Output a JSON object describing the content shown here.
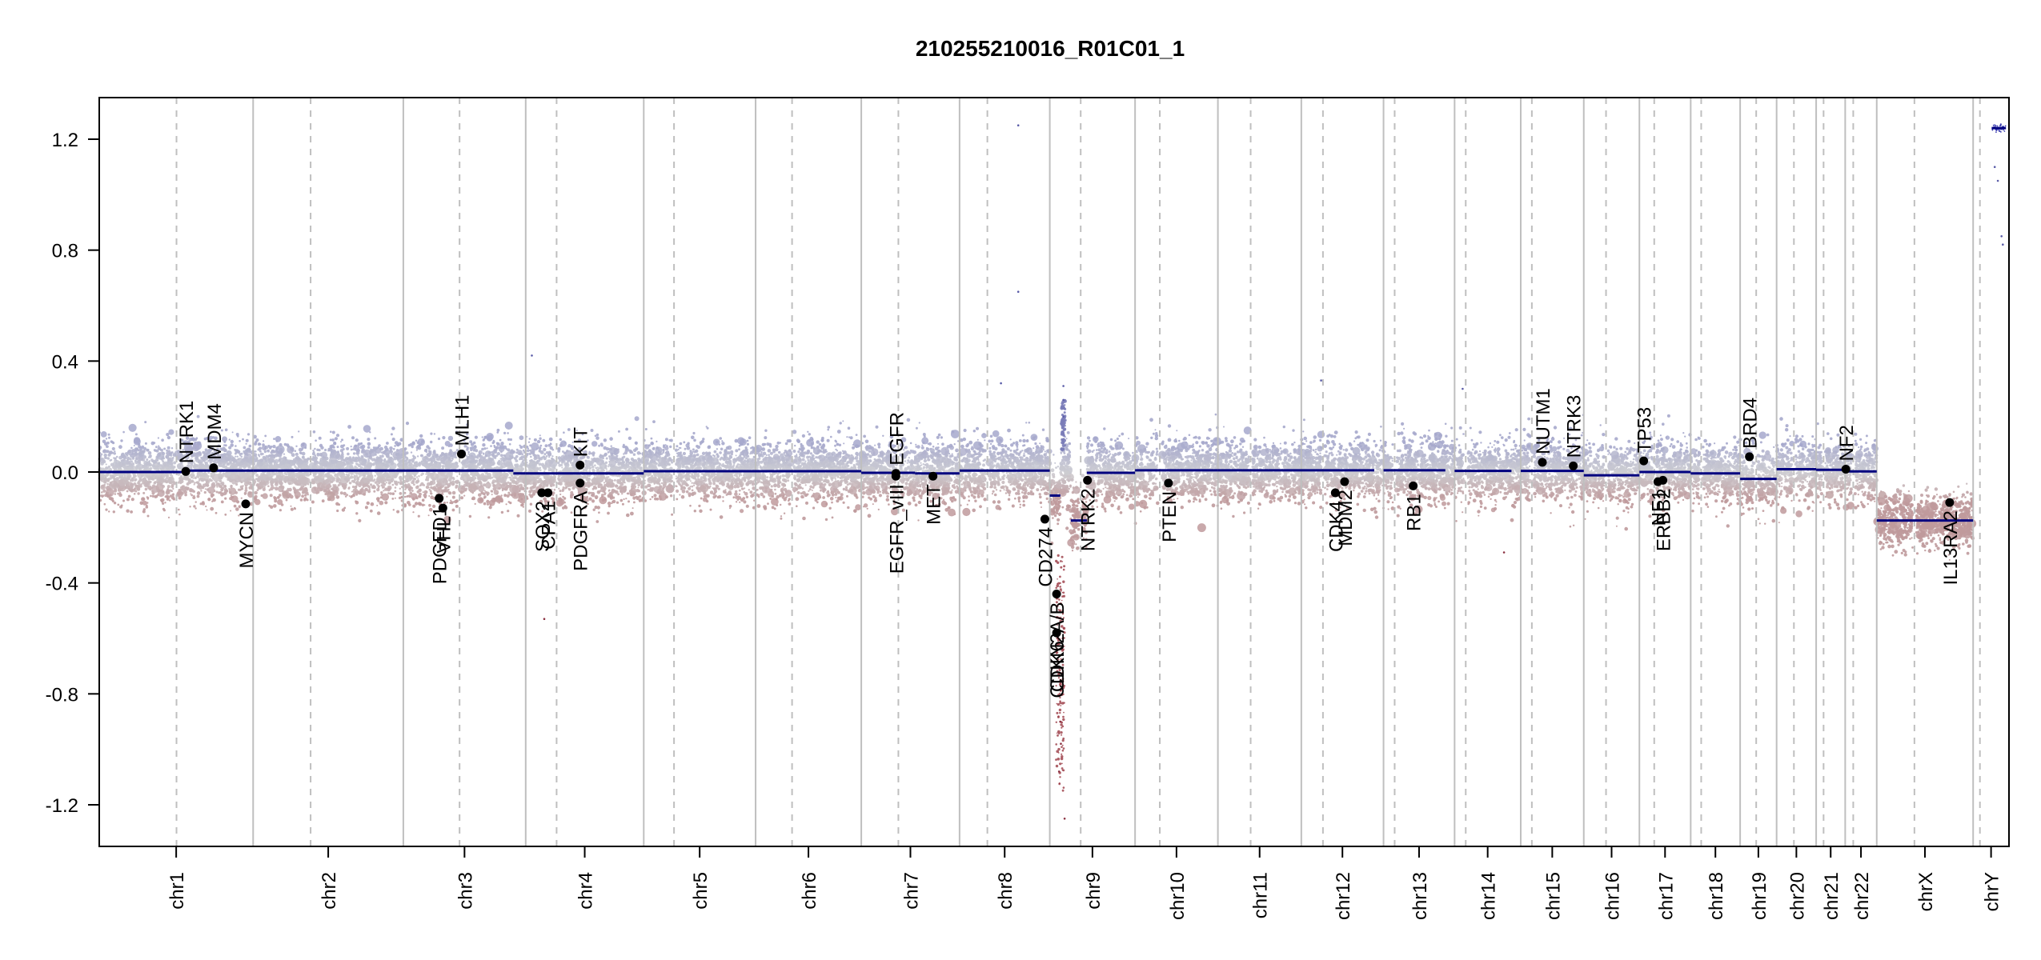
{
  "chart_data": {
    "type": "scatter",
    "title": "210255210016_R01C01_1",
    "xlabel": "",
    "ylabel": "",
    "ylim": [
      -1.35,
      1.35
    ],
    "yticks": [
      -1.2,
      -0.8,
      -0.4,
      0.0,
      0.4,
      0.8,
      1.2
    ],
    "ytick_labels": [
      "-1.2",
      "-0.8",
      "-0.4",
      "0.0",
      "0.4",
      "0.8",
      "1.2"
    ],
    "grid": false,
    "colors": {
      "positive_probes": "#a6a8cc",
      "negative_probes": "#bf9a9c",
      "segments": "#00007f",
      "genes": "#000000",
      "chrom_border": "#bfbfbf",
      "centromere": "#bfbfbf",
      "axis": "#000000"
    },
    "chromosomes": [
      {
        "name": "chr1",
        "start": 0,
        "end": 249,
        "centromere": 125
      },
      {
        "name": "chr2",
        "start": 249,
        "end": 492,
        "centromere": 342
      },
      {
        "name": "chr3",
        "start": 492,
        "end": 690,
        "centromere": 583
      },
      {
        "name": "chr4",
        "start": 690,
        "end": 881,
        "centromere": 740
      },
      {
        "name": "chr5",
        "start": 881,
        "end": 1062,
        "centromere": 930
      },
      {
        "name": "chr6",
        "start": 1062,
        "end": 1233,
        "centromere": 1121
      },
      {
        "name": "chr7",
        "start": 1233,
        "end": 1392,
        "centromere": 1293
      },
      {
        "name": "chr8",
        "start": 1392,
        "end": 1538,
        "centromere": 1437
      },
      {
        "name": "chr9",
        "start": 1538,
        "end": 1676,
        "centromere": 1588
      },
      {
        "name": "chr10",
        "start": 1676,
        "end": 1810,
        "centromere": 1716
      },
      {
        "name": "chr11",
        "start": 1810,
        "end": 1945,
        "centromere": 1863
      },
      {
        "name": "chr12",
        "start": 1945,
        "end": 2078,
        "centromere": 1980
      },
      {
        "name": "chr13",
        "start": 2078,
        "end": 2193,
        "centromere": 2096
      },
      {
        "name": "chr14",
        "start": 2193,
        "end": 2300,
        "centromere": 2211
      },
      {
        "name": "chr15",
        "start": 2300,
        "end": 2402,
        "centromere": 2318
      },
      {
        "name": "chr16",
        "start": 2402,
        "end": 2492,
        "centromere": 2438
      },
      {
        "name": "chr17",
        "start": 2492,
        "end": 2575,
        "centromere": 2516
      },
      {
        "name": "chr18",
        "start": 2575,
        "end": 2655,
        "centromere": 2592
      },
      {
        "name": "chr19",
        "start": 2655,
        "end": 2714,
        "centromere": 2681
      },
      {
        "name": "chr20",
        "start": 2714,
        "end": 2778,
        "centromere": 2742
      },
      {
        "name": "chr21",
        "start": 2778,
        "end": 2825,
        "centromere": 2790
      },
      {
        "name": "chr22",
        "start": 2825,
        "end": 2876,
        "centromere": 2838
      },
      {
        "name": "chrX",
        "start": 2876,
        "end": 3032,
        "centromere": 2937
      },
      {
        "name": "chrY",
        "start": 3032,
        "end": 3090,
        "centromere": 3043
      }
    ],
    "segments": [
      {
        "start": 0,
        "end": 145,
        "value": 0.0
      },
      {
        "start": 145,
        "end": 249,
        "value": 0.005
      },
      {
        "start": 249,
        "end": 670,
        "value": 0.005
      },
      {
        "start": 670,
        "end": 690,
        "value": -0.005
      },
      {
        "start": 690,
        "end": 881,
        "value": -0.005
      },
      {
        "start": 881,
        "end": 1233,
        "value": 0.003
      },
      {
        "start": 1233,
        "end": 1320,
        "value": -0.003
      },
      {
        "start": 1320,
        "end": 1392,
        "value": -0.005
      },
      {
        "start": 1392,
        "end": 1538,
        "value": 0.005
      },
      {
        "start": 1538,
        "end": 1555,
        "value": -0.085
      },
      {
        "start": 1572,
        "end": 1598,
        "value": -0.175
      },
      {
        "start": 1598,
        "end": 1676,
        "value": -0.003
      },
      {
        "start": 1676,
        "end": 1810,
        "value": 0.006
      },
      {
        "start": 1810,
        "end": 2063,
        "value": 0.006
      },
      {
        "start": 2078,
        "end": 2178,
        "value": 0.006
      },
      {
        "start": 2193,
        "end": 2285,
        "value": 0.004
      },
      {
        "start": 2300,
        "end": 2402,
        "value": 0.004
      },
      {
        "start": 2402,
        "end": 2492,
        "value": -0.012
      },
      {
        "start": 2492,
        "end": 2575,
        "value": 0.0
      },
      {
        "start": 2575,
        "end": 2655,
        "value": -0.005
      },
      {
        "start": 2655,
        "end": 2714,
        "value": -0.025
      },
      {
        "start": 2714,
        "end": 2778,
        "value": 0.01
      },
      {
        "start": 2778,
        "end": 2825,
        "value": 0.008
      },
      {
        "start": 2825,
        "end": 2876,
        "value": 0.002
      },
      {
        "start": 2876,
        "end": 3032,
        "value": -0.175
      },
      {
        "start": 3062,
        "end": 3085,
        "value": 1.24
      }
    ],
    "genes": [
      {
        "name": "NTRK1",
        "pos": 140,
        "value": 0.002,
        "label_side": "up"
      },
      {
        "name": "MDM4",
        "pos": 185,
        "value": 0.015,
        "label_side": "up"
      },
      {
        "name": "MYCN",
        "pos": 237,
        "value": -0.115,
        "label_side": "down"
      },
      {
        "name": "PDGFD1",
        "pos": 550,
        "value": -0.095,
        "label_side": "down"
      },
      {
        "name": "VHL",
        "pos": 556,
        "value": -0.13,
        "label_side": "down"
      },
      {
        "name": "MLH1",
        "pos": 586,
        "value": 0.065,
        "label_side": "up"
      },
      {
        "name": "SOX2",
        "pos": 716,
        "value": -0.075,
        "label_side": "down"
      },
      {
        "name": "CPA1",
        "pos": 726,
        "value": -0.075,
        "label_side": "down"
      },
      {
        "name": "KIT",
        "pos": 778,
        "value": 0.025,
        "label_side": "up"
      },
      {
        "name": "PDGFRA",
        "pos": 778,
        "value": -0.04,
        "label_side": "down"
      },
      {
        "name": "EGFR",
        "pos": 1289,
        "value": -0.005,
        "label_side": "up"
      },
      {
        "name": "EGFR_vIII",
        "pos": 1289,
        "value": -0.015,
        "label_side": "down"
      },
      {
        "name": "MET",
        "pos": 1349,
        "value": -0.015,
        "label_side": "down"
      },
      {
        "name": "CD274",
        "pos": 1530,
        "value": -0.17,
        "label_side": "down"
      },
      {
        "name": "CDKN2A/B",
        "pos": 1549,
        "value": -0.44,
        "label_side": "down"
      },
      {
        "name": "CDK6",
        "pos": 1549,
        "value": -0.58,
        "label_side": "down"
      },
      {
        "name": "NTRK2",
        "pos": 1599,
        "value": -0.03,
        "label_side": "down"
      },
      {
        "name": "PTEN",
        "pos": 1730,
        "value": -0.04,
        "label_side": "down"
      },
      {
        "name": "CDK4",
        "pos": 2000,
        "value": -0.075,
        "label_side": "down"
      },
      {
        "name": "MDM2",
        "pos": 2015,
        "value": -0.035,
        "label_side": "down"
      },
      {
        "name": "RB1",
        "pos": 2126,
        "value": -0.05,
        "label_side": "down"
      },
      {
        "name": "NUTM1",
        "pos": 2335,
        "value": 0.035,
        "label_side": "up"
      },
      {
        "name": "NTRK3",
        "pos": 2385,
        "value": 0.022,
        "label_side": "up"
      },
      {
        "name": "TP53",
        "pos": 2499,
        "value": 0.04,
        "label_side": "up"
      },
      {
        "name": "NF1",
        "pos": 2522,
        "value": -0.035,
        "label_side": "down"
      },
      {
        "name": "ERBB2",
        "pos": 2530,
        "value": -0.03,
        "label_side": "down"
      },
      {
        "name": "BRD4",
        "pos": 2670,
        "value": 0.055,
        "label_side": "up"
      },
      {
        "name": "NF2",
        "pos": 2826,
        "value": 0.01,
        "label_side": "up"
      },
      {
        "name": "IL13RA2",
        "pos": 2994,
        "value": -0.11,
        "label_side": "down"
      }
    ],
    "outlier_probes": [
      {
        "pos": 1487,
        "value": 1.25
      },
      {
        "pos": 1487,
        "value": 0.65
      },
      {
        "pos": 1459,
        "value": 0.32
      },
      {
        "pos": 700,
        "value": 0.42
      },
      {
        "pos": 1560,
        "value": 0.31
      },
      {
        "pos": 1560,
        "value": 0.26
      },
      {
        "pos": 1560,
        "value": 0.2
      },
      {
        "pos": 1562,
        "value": -1.25
      },
      {
        "pos": 1553,
        "value": -1.08
      },
      {
        "pos": 1556,
        "value": -0.98
      },
      {
        "pos": 1555,
        "value": -0.9
      },
      {
        "pos": 1977,
        "value": 0.33
      },
      {
        "pos": 2206,
        "value": 0.3
      },
      {
        "pos": 2273,
        "value": -0.29
      },
      {
        "pos": 720,
        "value": -0.53
      },
      {
        "pos": 3067,
        "value": 1.1
      },
      {
        "pos": 3072,
        "value": 1.05
      },
      {
        "pos": 3078,
        "value": 0.85
      },
      {
        "pos": 3080,
        "value": 0.82
      }
    ]
  }
}
